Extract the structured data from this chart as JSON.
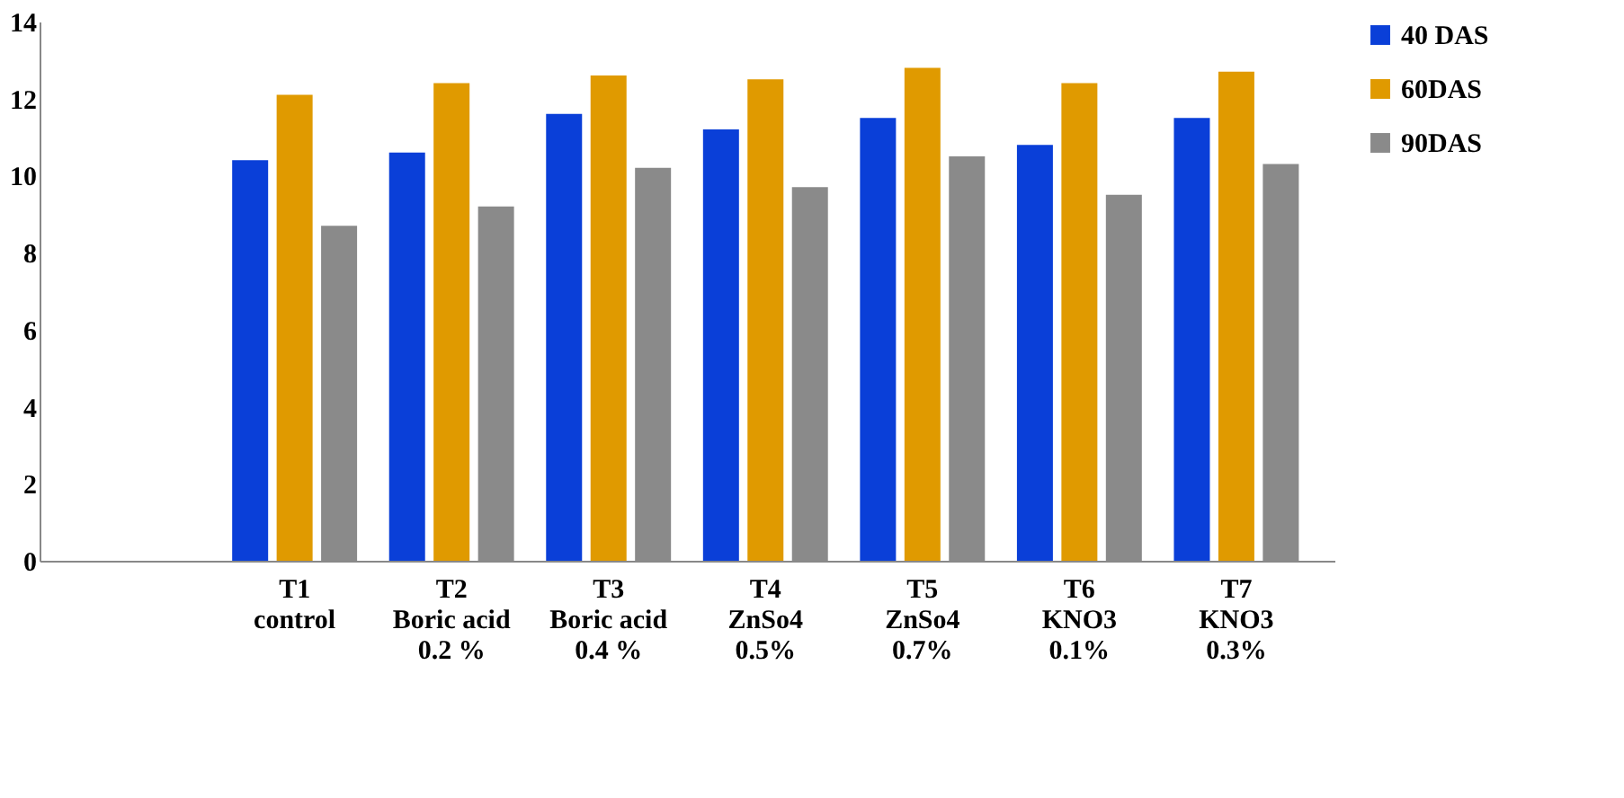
{
  "chart_data": {
    "type": "bar",
    "categories": [
      null,
      "T1\ncontrol",
      "T2\nBoric acid\n0.2 %",
      "T3\nBoric acid\n0.4 %",
      "T4\nZnSo4\n0.5%",
      "T5\nZnSo4\n0.7%",
      "T6\nKNO3\n0.1%",
      "T7\nKNO3\n0.3%"
    ],
    "series": [
      {
        "name": "40 DAS",
        "color": "#0a3fd8",
        "values": [
          null,
          10.4,
          10.6,
          11.6,
          11.2,
          11.5,
          10.8,
          11.5
        ]
      },
      {
        "name": "60DAS",
        "color": "#e09a00",
        "values": [
          null,
          12.1,
          12.4,
          12.6,
          12.5,
          12.8,
          12.4,
          12.7
        ]
      },
      {
        "name": "90DAS",
        "color": "#8a8a8a",
        "values": [
          null,
          8.7,
          9.2,
          10.2,
          9.7,
          10.5,
          9.5,
          10.3
        ]
      }
    ],
    "ylim": [
      0,
      14
    ],
    "yticks": [
      0,
      2,
      4,
      6,
      8,
      10,
      12,
      14
    ],
    "grid": false,
    "legend": "right"
  }
}
